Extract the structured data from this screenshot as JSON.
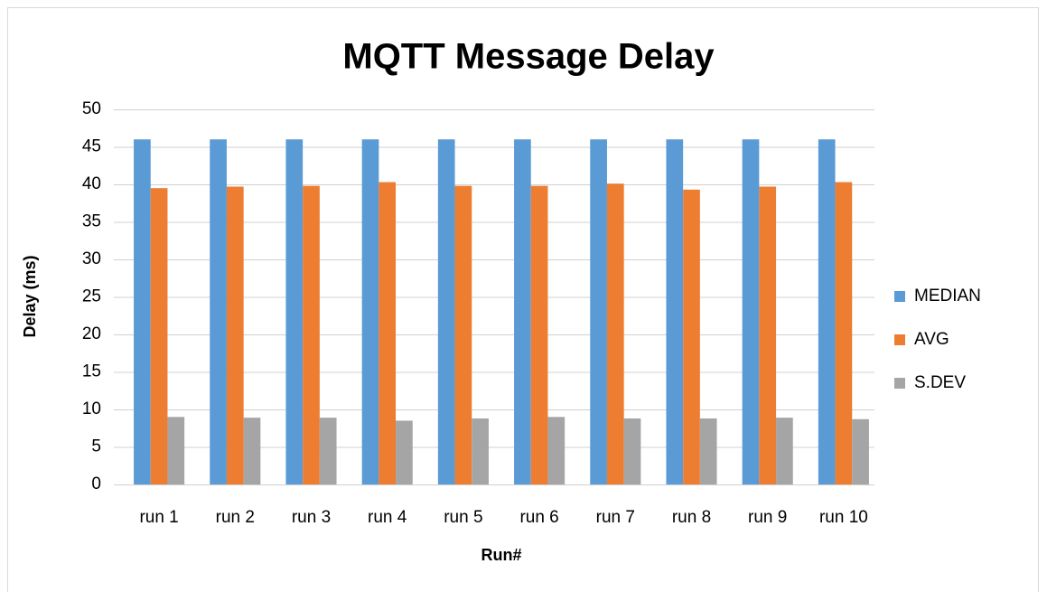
{
  "chart_data": {
    "type": "bar",
    "title": "MQTT Message Delay",
    "x_label": "Run#",
    "y_label": "Delay (ms)",
    "categories": [
      "run 1",
      "run 2",
      "run 3",
      "run 4",
      "run 5",
      "run 6",
      "run 7",
      "run 8",
      "run 9",
      "run 10"
    ],
    "series": [
      {
        "name": "MEDIAN",
        "color": "#5b9bd5",
        "values": [
          46,
          46,
          46,
          46,
          46,
          46,
          46,
          46,
          46,
          46
        ]
      },
      {
        "name": "AVG",
        "color": "#ed7d31",
        "values": [
          39.5,
          39.7,
          39.8,
          40.3,
          39.8,
          39.8,
          40.1,
          39.3,
          39.7,
          40.3
        ]
      },
      {
        "name": "S.DEV",
        "color": "#a5a5a5",
        "values": [
          9,
          8.9,
          8.9,
          8.5,
          8.8,
          9,
          8.8,
          8.8,
          8.9,
          8.7
        ]
      }
    ],
    "ylim": [
      0,
      50
    ],
    "yticks": [
      0,
      5,
      10,
      15,
      20,
      25,
      30,
      35,
      40,
      45,
      50
    ],
    "grid": true,
    "legend": "right"
  }
}
